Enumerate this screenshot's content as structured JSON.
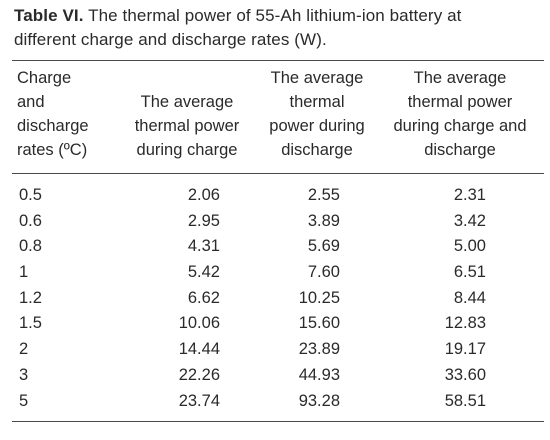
{
  "caption": {
    "label": "Table VI.",
    "line1": "The thermal power of 55-Ah lithium-ion battery at",
    "line2": "different charge and discharge rates (W)."
  },
  "headers": {
    "col1": [
      "Charge",
      "and",
      "discharge",
      "rates (ºC)"
    ],
    "col2": [
      "The average",
      "thermal power",
      "during charge"
    ],
    "col3": [
      "The average",
      "thermal",
      "power during",
      "discharge"
    ],
    "col4": [
      "The average",
      "thermal power",
      "during charge and",
      "discharge"
    ]
  },
  "rows": [
    {
      "rate": "0.5",
      "charge": "2.06",
      "discharge": "2.55",
      "both": "2.31"
    },
    {
      "rate": "0.6",
      "charge": "2.95",
      "discharge": "3.89",
      "both": "3.42"
    },
    {
      "rate": "0.8",
      "charge": "4.31",
      "discharge": "5.69",
      "both": "5.00"
    },
    {
      "rate": "1",
      "charge": "5.42",
      "discharge": "7.60",
      "both": "6.51"
    },
    {
      "rate": "1.2",
      "charge": "6.62",
      "discharge": "10.25",
      "both": "8.44"
    },
    {
      "rate": "1.5",
      "charge": "10.06",
      "discharge": "15.60",
      "both": "12.83"
    },
    {
      "rate": "2",
      "charge": "14.44",
      "discharge": "23.89",
      "both": "19.17"
    },
    {
      "rate": "3",
      "charge": "22.26",
      "discharge": "44.93",
      "both": "33.60"
    },
    {
      "rate": "5",
      "charge": "23.74",
      "discharge": "93.28",
      "both": "58.51"
    }
  ]
}
